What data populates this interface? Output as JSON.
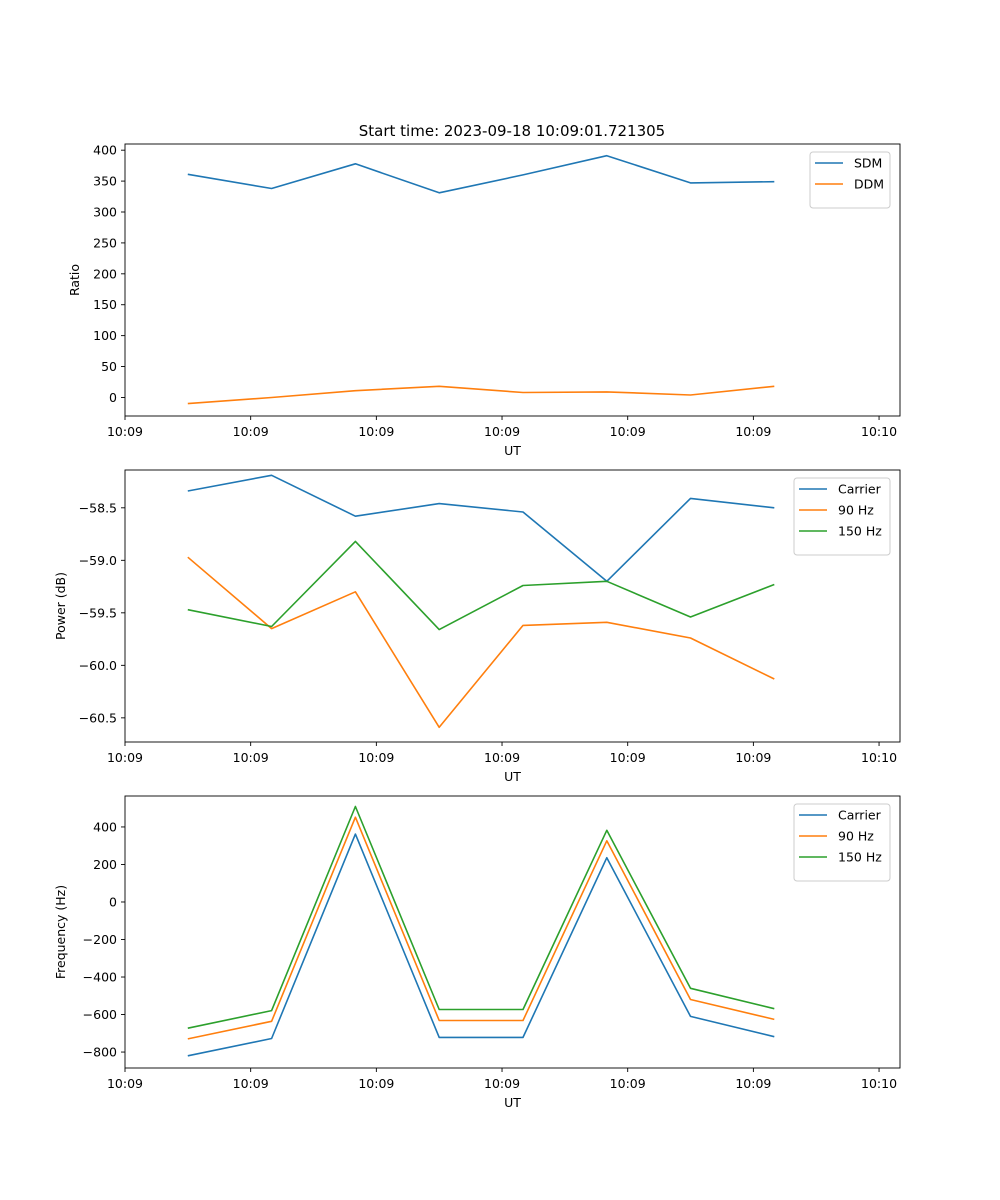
{
  "figure_title": "Start time: 2023-09-18 10:09:01.721305",
  "colors": {
    "blue": "#1f77b4",
    "orange": "#ff7f0e",
    "green": "#2ca02c"
  },
  "chart_data": [
    {
      "type": "line",
      "title": "Start time: 2023-09-18 10:09:01.721305",
      "xlabel": "UT",
      "ylabel": "Ratio",
      "x_range": [
        0,
        9.25
      ],
      "ylim": [
        -30,
        410
      ],
      "x": [
        0.75,
        1.75,
        2.75,
        3.75,
        4.75,
        5.75,
        6.75,
        7.75
      ],
      "x_tick_positions": [
        0,
        1.5,
        3,
        4.5,
        6,
        7.5,
        9
      ],
      "x_tick_labels": [
        "10:09",
        "10:09",
        "10:09",
        "10:09",
        "10:09",
        "10:09",
        "10:10"
      ],
      "y_ticks": [
        0,
        50,
        100,
        150,
        200,
        250,
        300,
        350,
        400
      ],
      "y_tick_labels": [
        "0",
        "50",
        "100",
        "150",
        "200",
        "250",
        "300",
        "350",
        "400"
      ],
      "legend": "upper right",
      "series": [
        {
          "name": "SDM",
          "color": "#1f77b4",
          "values": [
            361,
            338,
            378,
            331,
            360,
            391,
            347,
            349
          ]
        },
        {
          "name": "DDM",
          "color": "#ff7f0e",
          "values": [
            -10,
            0,
            11,
            18,
            8,
            9,
            4,
            18
          ]
        }
      ]
    },
    {
      "type": "line",
      "title": "",
      "xlabel": "UT",
      "ylabel": "Power (dB)",
      "x_range": [
        0,
        9.25
      ],
      "ylim": [
        -60.73,
        -58.14
      ],
      "x": [
        0.75,
        1.75,
        2.75,
        3.75,
        4.75,
        5.75,
        6.75,
        7.75
      ],
      "x_tick_positions": [
        0,
        1.5,
        3,
        4.5,
        6,
        7.5,
        9
      ],
      "x_tick_labels": [
        "10:09",
        "10:09",
        "10:09",
        "10:09",
        "10:09",
        "10:09",
        "10:10"
      ],
      "y_ticks": [
        -58.5,
        -59.0,
        -59.5,
        -60.0,
        -60.5
      ],
      "y_tick_labels": [
        "−58.5",
        "−59.0",
        "−59.5",
        "−60.0",
        "−60.5"
      ],
      "legend": "upper right",
      "series": [
        {
          "name": "Carrier",
          "color": "#1f77b4",
          "values": [
            -58.34,
            -58.19,
            -58.58,
            -58.46,
            -58.54,
            -59.2,
            -58.41,
            -58.5
          ]
        },
        {
          "name": "90 Hz",
          "color": "#ff7f0e",
          "values": [
            -58.97,
            -59.65,
            -59.3,
            -60.59,
            -59.62,
            -59.59,
            -59.74,
            -60.13
          ]
        },
        {
          "name": "150 Hz",
          "color": "#2ca02c",
          "values": [
            -59.47,
            -59.63,
            -58.82,
            -59.66,
            -59.24,
            -59.2,
            -59.54,
            -59.23
          ]
        }
      ]
    },
    {
      "type": "line",
      "title": "",
      "xlabel": "UT",
      "ylabel": "Frequency (Hz)",
      "x_range": [
        0,
        9.25
      ],
      "ylim": [
        -885,
        565
      ],
      "x": [
        0.75,
        1.75,
        2.75,
        3.75,
        4.75,
        5.75,
        6.75,
        7.75
      ],
      "x_tick_positions": [
        0,
        1.5,
        3,
        4.5,
        6,
        7.5,
        9
      ],
      "x_tick_labels": [
        "10:09",
        "10:09",
        "10:09",
        "10:09",
        "10:09",
        "10:09",
        "10:10"
      ],
      "y_ticks": [
        400,
        200,
        0,
        -200,
        -400,
        -600,
        -800
      ],
      "y_tick_labels": [
        "400",
        "200",
        "0",
        "−200",
        "−400",
        "−600",
        "−800"
      ],
      "legend": "upper right",
      "series": [
        {
          "name": "Carrier",
          "color": "#1f77b4",
          "values": [
            -820,
            -728,
            362,
            -722,
            -722,
            236,
            -610,
            -718
          ]
        },
        {
          "name": "90 Hz",
          "color": "#ff7f0e",
          "values": [
            -730,
            -636,
            452,
            -632,
            -632,
            326,
            -520,
            -626
          ]
        },
        {
          "name": "150 Hz",
          "color": "#2ca02c",
          "values": [
            -673,
            -579,
            509,
            -573,
            -573,
            382,
            -460,
            -569
          ]
        }
      ]
    }
  ]
}
